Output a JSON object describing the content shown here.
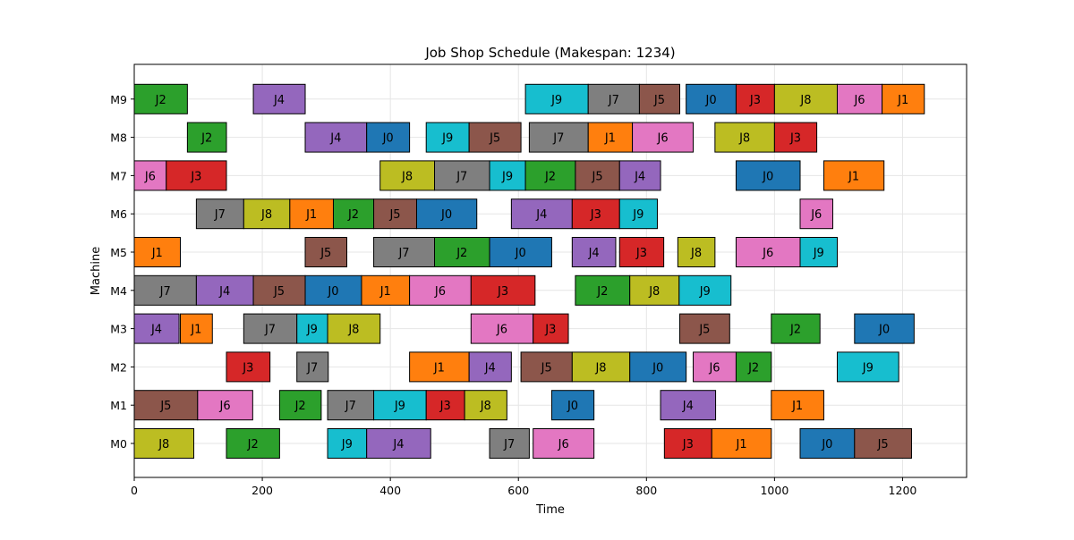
{
  "chart_data": {
    "type": "gantt",
    "title": "Job Shop Schedule (Makespan: 1234)",
    "xlabel": "Time",
    "ylabel": "Machine",
    "xlim": [
      0,
      1300
    ],
    "xticks": [
      0,
      200,
      400,
      600,
      800,
      1000,
      1200
    ],
    "grid": true,
    "machines": [
      "M0",
      "M1",
      "M2",
      "M3",
      "M4",
      "M5",
      "M6",
      "M7",
      "M8",
      "M9"
    ],
    "job_colors": {
      "J0": "#1f77b4",
      "J1": "#ff7f0e",
      "J2": "#2ca02c",
      "J3": "#d62728",
      "J4": "#9467bd",
      "J5": "#8c564b",
      "J6": "#e377c2",
      "J7": "#7f7f7f",
      "J8": "#bcbd22",
      "J9": "#17becf"
    },
    "tasks": [
      {
        "machine": "M0",
        "job": "J8",
        "start": 0,
        "end": 93
      },
      {
        "machine": "M0",
        "job": "J2",
        "start": 144,
        "end": 227
      },
      {
        "machine": "M0",
        "job": "J9",
        "start": 302,
        "end": 363
      },
      {
        "machine": "M0",
        "job": "J4",
        "start": 363,
        "end": 463
      },
      {
        "machine": "M0",
        "job": "J7",
        "start": 555,
        "end": 617
      },
      {
        "machine": "M0",
        "job": "J6",
        "start": 623,
        "end": 718
      },
      {
        "machine": "M0",
        "job": "J3",
        "start": 828,
        "end": 902
      },
      {
        "machine": "M0",
        "job": "J1",
        "start": 902,
        "end": 995
      },
      {
        "machine": "M0",
        "job": "J0",
        "start": 1040,
        "end": 1125
      },
      {
        "machine": "M0",
        "job": "J5",
        "start": 1125,
        "end": 1214
      },
      {
        "machine": "M1",
        "job": "J5",
        "start": 0,
        "end": 99
      },
      {
        "machine": "M1",
        "job": "J6",
        "start": 99,
        "end": 185
      },
      {
        "machine": "M1",
        "job": "J2",
        "start": 227,
        "end": 292
      },
      {
        "machine": "M1",
        "job": "J7",
        "start": 302,
        "end": 374
      },
      {
        "machine": "M1",
        "job": "J9",
        "start": 374,
        "end": 456
      },
      {
        "machine": "M1",
        "job": "J3",
        "start": 456,
        "end": 516
      },
      {
        "machine": "M1",
        "job": "J8",
        "start": 516,
        "end": 582
      },
      {
        "machine": "M1",
        "job": "J0",
        "start": 652,
        "end": 718
      },
      {
        "machine": "M1",
        "job": "J4",
        "start": 822,
        "end": 908
      },
      {
        "machine": "M1",
        "job": "J1",
        "start": 995,
        "end": 1077
      },
      {
        "machine": "M2",
        "job": "J3",
        "start": 144,
        "end": 212
      },
      {
        "machine": "M2",
        "job": "J7",
        "start": 254,
        "end": 303
      },
      {
        "machine": "M2",
        "job": "J1",
        "start": 430,
        "end": 523
      },
      {
        "machine": "M2",
        "job": "J4",
        "start": 523,
        "end": 589
      },
      {
        "machine": "M2",
        "job": "J5",
        "start": 604,
        "end": 684
      },
      {
        "machine": "M2",
        "job": "J8",
        "start": 684,
        "end": 774
      },
      {
        "machine": "M2",
        "job": "J0",
        "start": 774,
        "end": 862
      },
      {
        "machine": "M2",
        "job": "J6",
        "start": 873,
        "end": 940
      },
      {
        "machine": "M2",
        "job": "J2",
        "start": 940,
        "end": 995
      },
      {
        "machine": "M2",
        "job": "J9",
        "start": 1098,
        "end": 1194
      },
      {
        "machine": "M3",
        "job": "J4",
        "start": 0,
        "end": 70
      },
      {
        "machine": "M3",
        "job": "J1",
        "start": 72,
        "end": 122
      },
      {
        "machine": "M3",
        "job": "J7",
        "start": 171,
        "end": 254
      },
      {
        "machine": "M3",
        "job": "J9",
        "start": 254,
        "end": 302
      },
      {
        "machine": "M3",
        "job": "J8",
        "start": 302,
        "end": 384
      },
      {
        "machine": "M3",
        "job": "J6",
        "start": 526,
        "end": 623
      },
      {
        "machine": "M3",
        "job": "J3",
        "start": 623,
        "end": 678
      },
      {
        "machine": "M3",
        "job": "J5",
        "start": 852,
        "end": 930
      },
      {
        "machine": "M3",
        "job": "J2",
        "start": 995,
        "end": 1071
      },
      {
        "machine": "M3",
        "job": "J0",
        "start": 1125,
        "end": 1218
      },
      {
        "machine": "M4",
        "job": "J7",
        "start": 0,
        "end": 97
      },
      {
        "machine": "M4",
        "job": "J4",
        "start": 97,
        "end": 186
      },
      {
        "machine": "M4",
        "job": "J5",
        "start": 186,
        "end": 267
      },
      {
        "machine": "M4",
        "job": "J0",
        "start": 267,
        "end": 355
      },
      {
        "machine": "M4",
        "job": "J1",
        "start": 355,
        "end": 430
      },
      {
        "machine": "M4",
        "job": "J6",
        "start": 430,
        "end": 526
      },
      {
        "machine": "M4",
        "job": "J3",
        "start": 526,
        "end": 626
      },
      {
        "machine": "M4",
        "job": "J2",
        "start": 689,
        "end": 774
      },
      {
        "machine": "M4",
        "job": "J8",
        "start": 774,
        "end": 851
      },
      {
        "machine": "M4",
        "job": "J9",
        "start": 851,
        "end": 932
      },
      {
        "machine": "M5",
        "job": "J1",
        "start": 0,
        "end": 72
      },
      {
        "machine": "M5",
        "job": "J5",
        "start": 267,
        "end": 332
      },
      {
        "machine": "M5",
        "job": "J7",
        "start": 374,
        "end": 469
      },
      {
        "machine": "M5",
        "job": "J2",
        "start": 469,
        "end": 555
      },
      {
        "machine": "M5",
        "job": "J0",
        "start": 555,
        "end": 652
      },
      {
        "machine": "M5",
        "job": "J4",
        "start": 684,
        "end": 752
      },
      {
        "machine": "M5",
        "job": "J3",
        "start": 758,
        "end": 827
      },
      {
        "machine": "M5",
        "job": "J8",
        "start": 849,
        "end": 907
      },
      {
        "machine": "M5",
        "job": "J6",
        "start": 940,
        "end": 1040
      },
      {
        "machine": "M5",
        "job": "J9",
        "start": 1040,
        "end": 1098
      },
      {
        "machine": "M6",
        "job": "J7",
        "start": 97,
        "end": 171
      },
      {
        "machine": "M6",
        "job": "J8",
        "start": 171,
        "end": 243
      },
      {
        "machine": "M6",
        "job": "J1",
        "start": 243,
        "end": 311
      },
      {
        "machine": "M6",
        "job": "J2",
        "start": 311,
        "end": 374
      },
      {
        "machine": "M6",
        "job": "J5",
        "start": 374,
        "end": 441
      },
      {
        "machine": "M6",
        "job": "J0",
        "start": 441,
        "end": 535
      },
      {
        "machine": "M6",
        "job": "J4",
        "start": 589,
        "end": 684
      },
      {
        "machine": "M6",
        "job": "J3",
        "start": 684,
        "end": 758
      },
      {
        "machine": "M6",
        "job": "J9",
        "start": 758,
        "end": 817
      },
      {
        "machine": "M6",
        "job": "J6",
        "start": 1040,
        "end": 1091
      },
      {
        "machine": "M7",
        "job": "J6",
        "start": 0,
        "end": 50
      },
      {
        "machine": "M7",
        "job": "J3",
        "start": 50,
        "end": 144
      },
      {
        "machine": "M7",
        "job": "J8",
        "start": 384,
        "end": 469
      },
      {
        "machine": "M7",
        "job": "J7",
        "start": 469,
        "end": 555
      },
      {
        "machine": "M7",
        "job": "J9",
        "start": 555,
        "end": 611
      },
      {
        "machine": "M7",
        "job": "J2",
        "start": 611,
        "end": 689
      },
      {
        "machine": "M7",
        "job": "J5",
        "start": 689,
        "end": 758
      },
      {
        "machine": "M7",
        "job": "J4",
        "start": 758,
        "end": 822
      },
      {
        "machine": "M7",
        "job": "J0",
        "start": 940,
        "end": 1040
      },
      {
        "machine": "M7",
        "job": "J1",
        "start": 1077,
        "end": 1171
      },
      {
        "machine": "M8",
        "job": "J2",
        "start": 83,
        "end": 144
      },
      {
        "machine": "M8",
        "job": "J4",
        "start": 267,
        "end": 363
      },
      {
        "machine": "M8",
        "job": "J0",
        "start": 363,
        "end": 430
      },
      {
        "machine": "M8",
        "job": "J9",
        "start": 456,
        "end": 523
      },
      {
        "machine": "M8",
        "job": "J5",
        "start": 523,
        "end": 604
      },
      {
        "machine": "M8",
        "job": "J7",
        "start": 617,
        "end": 709
      },
      {
        "machine": "M8",
        "job": "J1",
        "start": 709,
        "end": 778
      },
      {
        "machine": "M8",
        "job": "J6",
        "start": 778,
        "end": 873
      },
      {
        "machine": "M8",
        "job": "J8",
        "start": 907,
        "end": 1000
      },
      {
        "machine": "M8",
        "job": "J3",
        "start": 1000,
        "end": 1066
      },
      {
        "machine": "M9",
        "job": "J2",
        "start": 0,
        "end": 83
      },
      {
        "machine": "M9",
        "job": "J4",
        "start": 186,
        "end": 267
      },
      {
        "machine": "M9",
        "job": "J9",
        "start": 611,
        "end": 709
      },
      {
        "machine": "M9",
        "job": "J7",
        "start": 709,
        "end": 789
      },
      {
        "machine": "M9",
        "job": "J5",
        "start": 789,
        "end": 852
      },
      {
        "machine": "M9",
        "job": "J0",
        "start": 862,
        "end": 940
      },
      {
        "machine": "M9",
        "job": "J3",
        "start": 940,
        "end": 1000
      },
      {
        "machine": "M9",
        "job": "J8",
        "start": 1000,
        "end": 1098
      },
      {
        "machine": "M9",
        "job": "J6",
        "start": 1098,
        "end": 1168
      },
      {
        "machine": "M9",
        "job": "J1",
        "start": 1168,
        "end": 1234
      }
    ]
  }
}
